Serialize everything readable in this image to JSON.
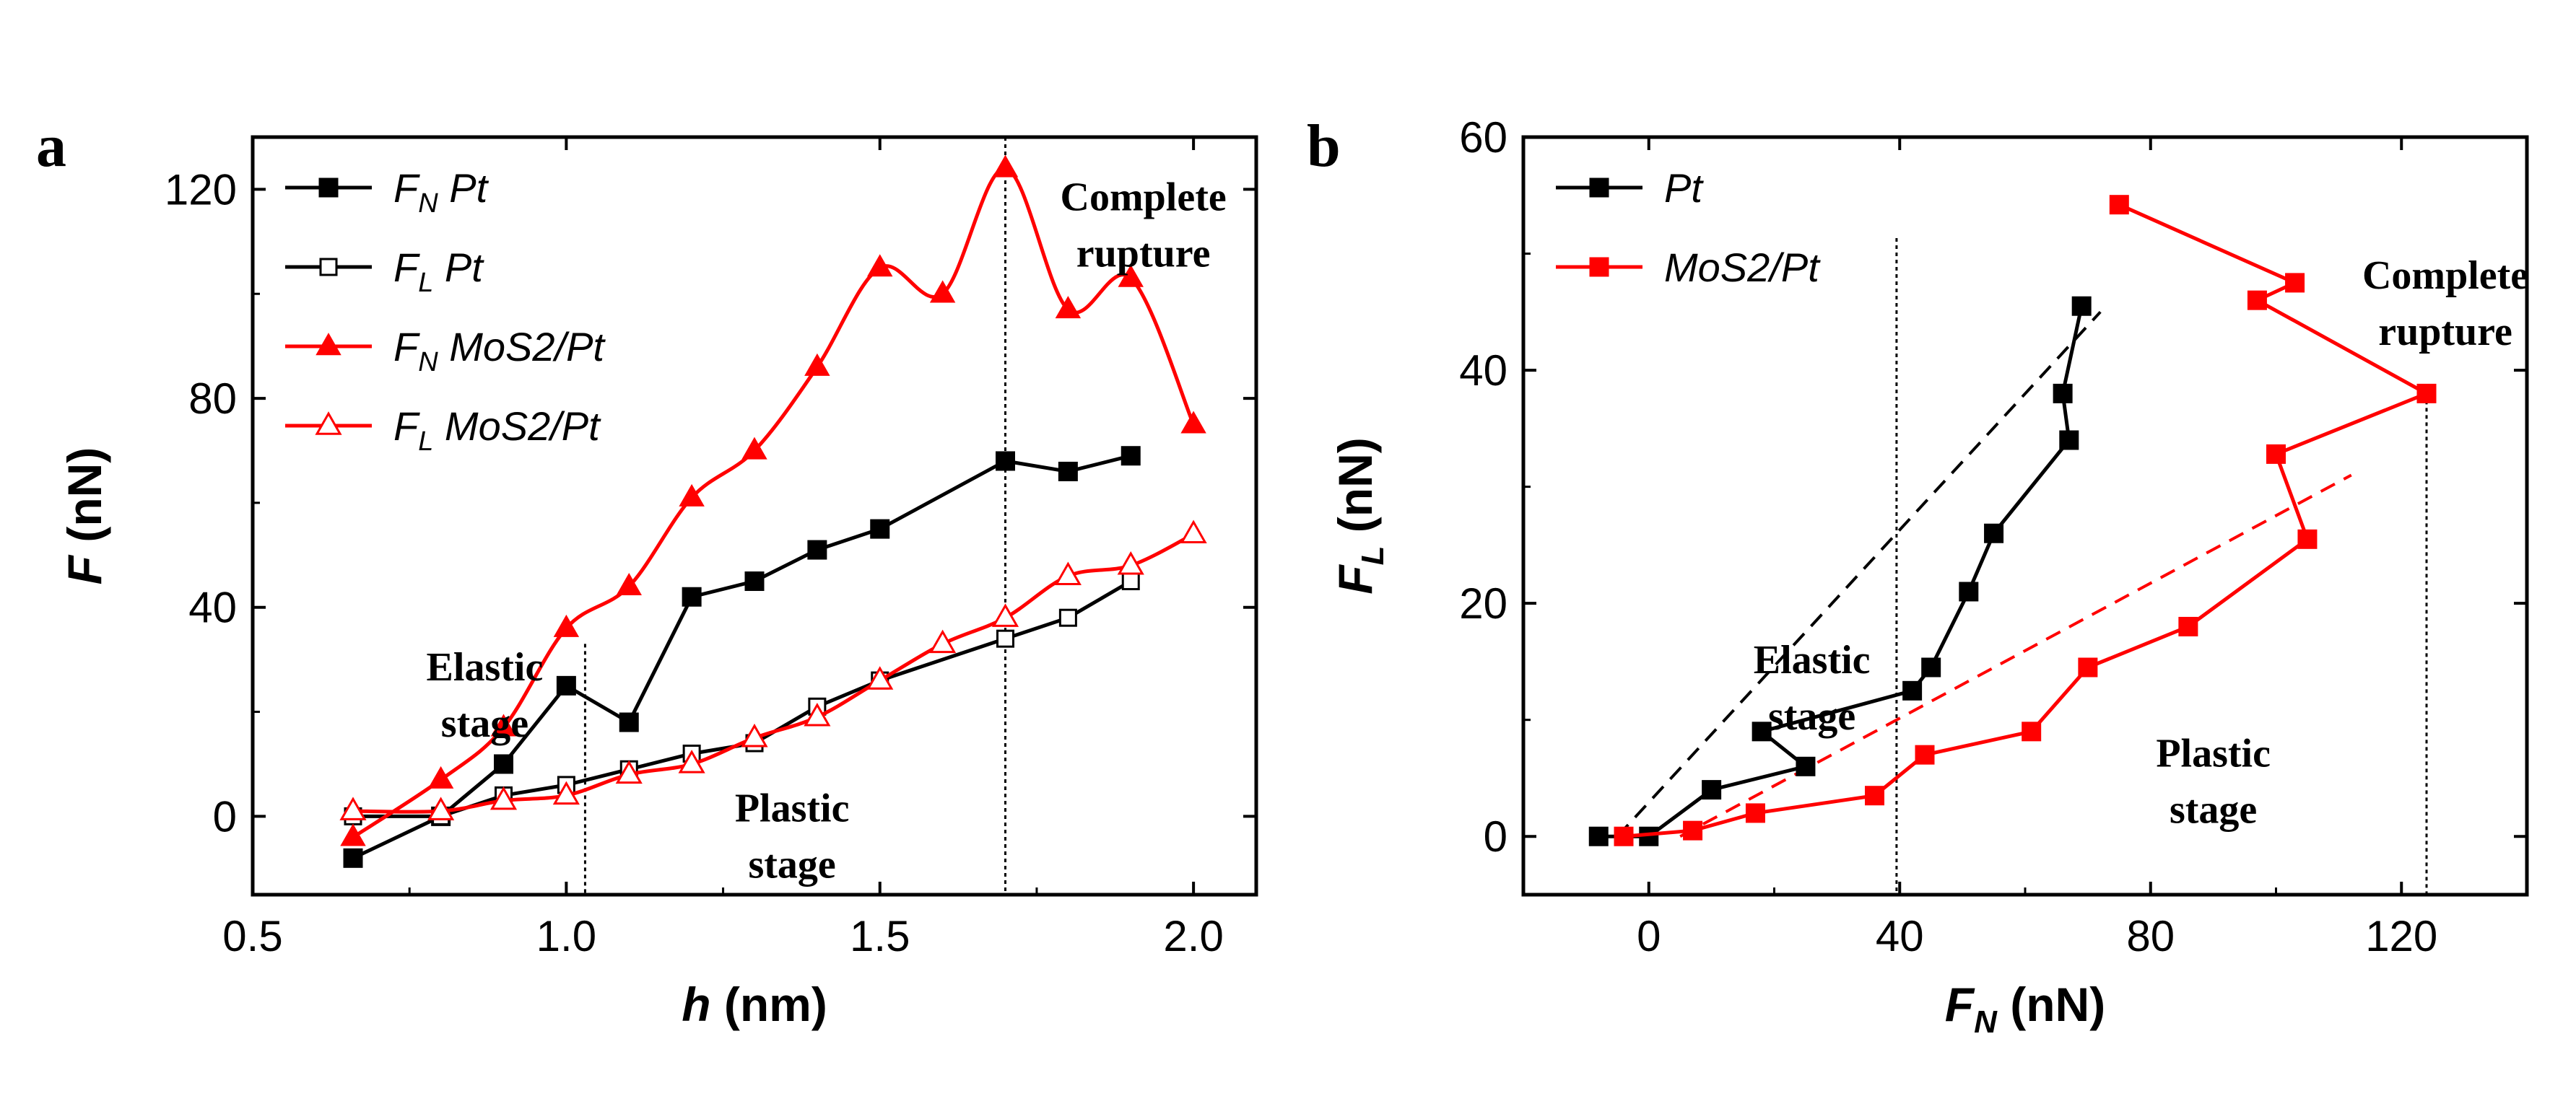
{
  "chart_data": [
    {
      "panel_label": "a",
      "type": "line",
      "xlabel": "h",
      "xunit": "(nm)",
      "ylabel": "F",
      "yunit": "(nN)",
      "xlim": [
        0.5,
        2.1
      ],
      "ylim": [
        -15,
        130
      ],
      "xticks": [
        0.5,
        1.0,
        1.5,
        2.0
      ],
      "xtick_labels": [
        "0.5",
        "1.0",
        "1.5",
        "2.0"
      ],
      "yticks": [
        0,
        40,
        80,
        120
      ],
      "ytick_labels": [
        "0",
        "40",
        "80",
        "120"
      ],
      "grid": false,
      "legend_position": "top-left",
      "series": [
        {
          "name": "FN Pt",
          "legend_sym": "F",
          "legend_sub": "N",
          "legend_rest": "Pt",
          "color": "#000000",
          "marker": "square-filled",
          "smooth": false,
          "x": [
            0.66,
            0.8,
            0.9,
            1.0,
            1.1,
            1.2,
            1.3,
            1.4,
            1.5,
            1.7,
            1.8,
            1.9
          ],
          "y": [
            -8,
            0,
            10,
            25,
            18,
            42,
            45,
            51,
            55,
            68,
            66,
            69
          ]
        },
        {
          "name": "FL Pt",
          "legend_sym": "F",
          "legend_sub": "L",
          "legend_rest": "Pt",
          "color": "#000000",
          "marker": "square-open",
          "smooth": false,
          "x": [
            0.66,
            0.8,
            0.9,
            1.0,
            1.1,
            1.2,
            1.3,
            1.4,
            1.5,
            1.7,
            1.8,
            1.9
          ],
          "y": [
            0,
            0,
            4,
            6,
            9,
            12,
            14,
            21,
            26,
            34,
            38,
            45
          ]
        },
        {
          "name": "FN MoS2/Pt",
          "legend_sym": "F",
          "legend_sub": "N",
          "legend_rest": "MoS2/Pt",
          "color": "#ff0000",
          "marker": "triangle-filled",
          "smooth": true,
          "x": [
            0.66,
            0.8,
            0.9,
            1.0,
            1.1,
            1.2,
            1.3,
            1.4,
            1.5,
            1.6,
            1.7,
            1.8,
            1.9,
            2.0
          ],
          "y": [
            -4,
            7,
            17,
            36,
            44,
            61,
            70,
            86,
            105,
            100,
            124,
            97,
            103,
            75
          ]
        },
        {
          "name": "FL MoS2/Pt",
          "legend_sym": "F",
          "legend_sub": "L",
          "legend_rest": "MoS2/Pt",
          "color": "#ff0000",
          "marker": "triangle-open",
          "smooth": true,
          "x": [
            0.66,
            0.8,
            0.9,
            1.0,
            1.1,
            1.2,
            1.3,
            1.4,
            1.5,
            1.6,
            1.7,
            1.8,
            1.9,
            2.0
          ],
          "y": [
            1,
            1,
            3,
            4,
            8,
            10,
            15,
            19,
            26,
            33,
            38,
            46,
            48,
            54
          ]
        }
      ],
      "vlines": [
        1.03,
        1.7
      ],
      "annotations": [
        {
          "lines": [
            "Elastic",
            "stage"
          ],
          "x": 0.87,
          "y": 26
        },
        {
          "lines": [
            "Plastic",
            "stage"
          ],
          "x": 1.36,
          "y": -1
        },
        {
          "lines": [
            "Complete",
            "rupture"
          ],
          "x": 1.92,
          "y": 116
        }
      ]
    },
    {
      "panel_label": "b",
      "type": "line",
      "xlabel": "F",
      "xlabel_sub": "N",
      "xunit": "(nN)",
      "ylabel": "F",
      "ylabel_sub": "L",
      "yunit": "(nN)",
      "xlim": [
        -20,
        140
      ],
      "ylim": [
        -5,
        60
      ],
      "xticks": [
        0,
        40,
        80,
        120
      ],
      "xtick_labels": [
        "0",
        "40",
        "80",
        "120"
      ],
      "yticks": [
        0,
        20,
        40,
        60
      ],
      "ytick_labels": [
        "0",
        "20",
        "40",
        "60"
      ],
      "grid": false,
      "legend_position": "top-left",
      "series": [
        {
          "name": "Pt",
          "legend_text": "Pt",
          "color": "#000000",
          "marker": "square-filled",
          "x": [
            -8,
            0,
            10,
            25,
            18,
            42,
            45,
            51,
            55,
            67,
            66,
            69
          ],
          "y": [
            0,
            0,
            4,
            6,
            9,
            12.5,
            14.5,
            21,
            26,
            34,
            38,
            45.5
          ]
        },
        {
          "name": "MoS2/Pt",
          "legend_text": "MoS2/Pt",
          "color": "#ff0000",
          "marker": "square-filled",
          "x": [
            -4,
            7,
            17,
            36,
            44,
            61,
            70,
            86,
            105,
            100,
            124,
            97,
            103,
            75
          ],
          "y": [
            0,
            0.5,
            2,
            3.5,
            7,
            9,
            14.5,
            18,
            25.5,
            32.8,
            38,
            46,
            47.5,
            54.2
          ]
        }
      ],
      "fits": [
        {
          "color": "#000000",
          "x": [
            -5,
            72
          ],
          "y": [
            0,
            45
          ]
        },
        {
          "color": "#ff0000",
          "x": [
            5,
            112
          ],
          "y": [
            0,
            31
          ]
        }
      ],
      "vlines": [
        39.5,
        124
      ],
      "annotations": [
        {
          "lines": [
            "Elastic",
            "stage"
          ],
          "x": 26,
          "y": 14
        },
        {
          "lines": [
            "Plastic",
            "stage"
          ],
          "x": 90,
          "y": 6
        },
        {
          "lines": [
            "Complete",
            "rupture"
          ],
          "x": 127,
          "y": 47
        }
      ]
    }
  ]
}
